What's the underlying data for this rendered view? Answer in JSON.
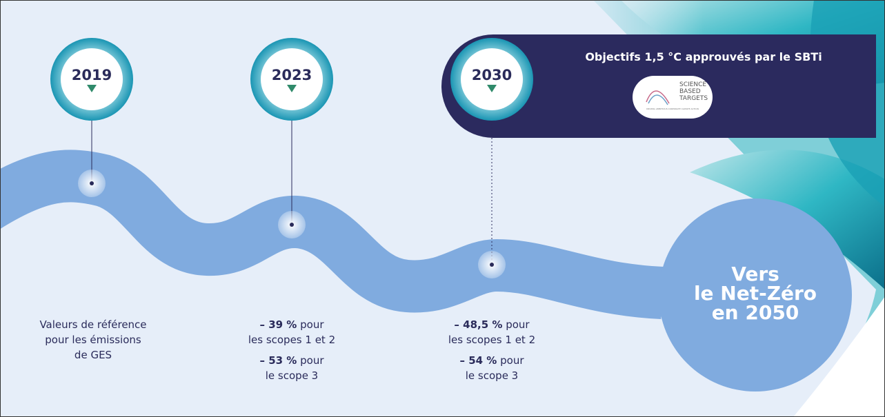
{
  "banner": {
    "title": "Objectifs 1,5 °C approuvés par le SBTi",
    "logo": {
      "lines": [
        "SCIENCE",
        "BASED",
        "TARGETS"
      ],
      "tagline": "DRIVING AMBITIOUS CORPORATE CLIMATE ACTION"
    }
  },
  "milestones": [
    {
      "year": "2019",
      "description": [
        "Valeurs de référence",
        "pour les émissions",
        "de GES"
      ]
    },
    {
      "year": "2023",
      "targets": [
        {
          "value": "– 39 %",
          "suffix": "pour",
          "scope": "les scopes 1 et 2"
        },
        {
          "value": "– 53 %",
          "suffix": "pour",
          "scope": "le scope 3"
        }
      ]
    },
    {
      "year": "2030",
      "targets": [
        {
          "value": "– 48,5 %",
          "suffix": "pour",
          "scope": "les scopes 1 et 2"
        },
        {
          "value": "– 54 %",
          "suffix": "pour",
          "scope": "le scope 3"
        }
      ]
    }
  ],
  "goal": {
    "lines": [
      "Vers",
      "le Net-Zéro",
      "en 2050"
    ]
  }
}
